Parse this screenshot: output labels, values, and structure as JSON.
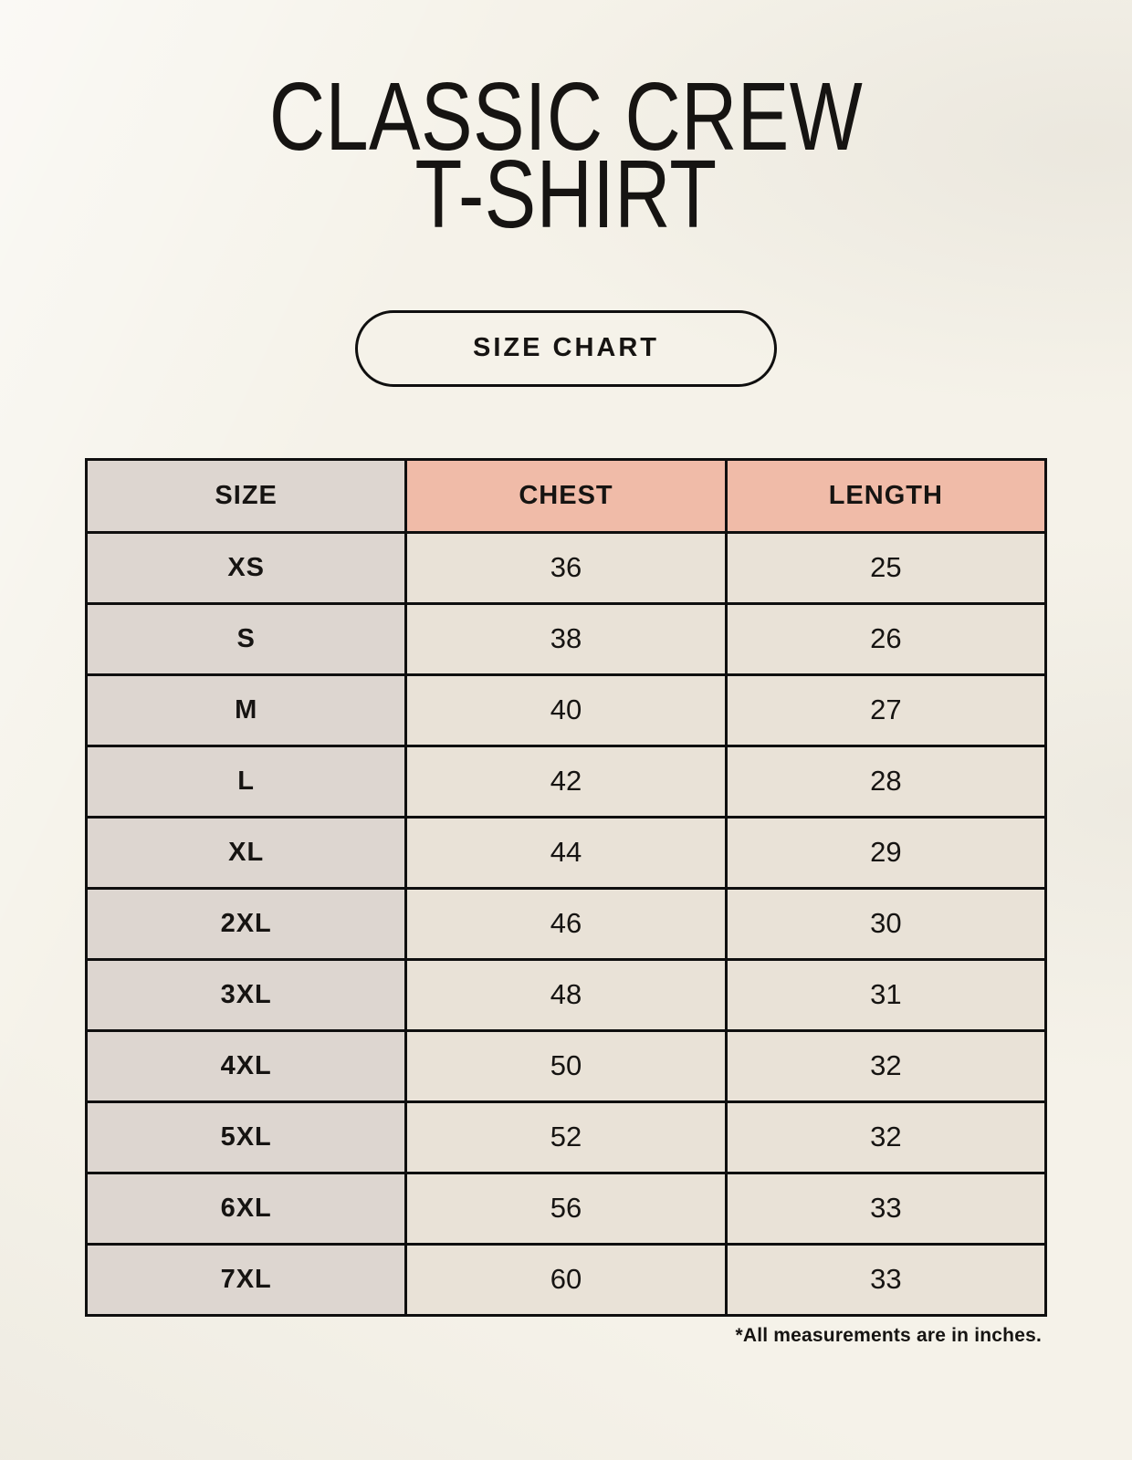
{
  "page": {
    "title_line1": "CLASSIC CREW",
    "title_line2": "T-SHIRT",
    "button_label": "SIZE CHART",
    "footnote": "*All measurements are in inches."
  },
  "colors": {
    "page_background": "#f5f2e9",
    "size_column_bg": "#ddd6d0",
    "header_accent_bg": "#f0bba8",
    "cell_bg": "#e9e2d7",
    "border": "#0f0f0f",
    "text": "#161412"
  },
  "chart_data": {
    "type": "table",
    "title": "Classic Crew T-Shirt Size Chart",
    "columns": [
      "SIZE",
      "CHEST",
      "LENGTH"
    ],
    "rows": [
      [
        "XS",
        "36",
        "25"
      ],
      [
        "S",
        "38",
        "26"
      ],
      [
        "M",
        "40",
        "27"
      ],
      [
        "L",
        "42",
        "28"
      ],
      [
        "XL",
        "44",
        "29"
      ],
      [
        "2XL",
        "46",
        "30"
      ],
      [
        "3XL",
        "48",
        "31"
      ],
      [
        "4XL",
        "50",
        "32"
      ],
      [
        "5XL",
        "52",
        "32"
      ],
      [
        "6XL",
        "56",
        "33"
      ],
      [
        "7XL",
        "60",
        "33"
      ]
    ],
    "units": "inches"
  }
}
